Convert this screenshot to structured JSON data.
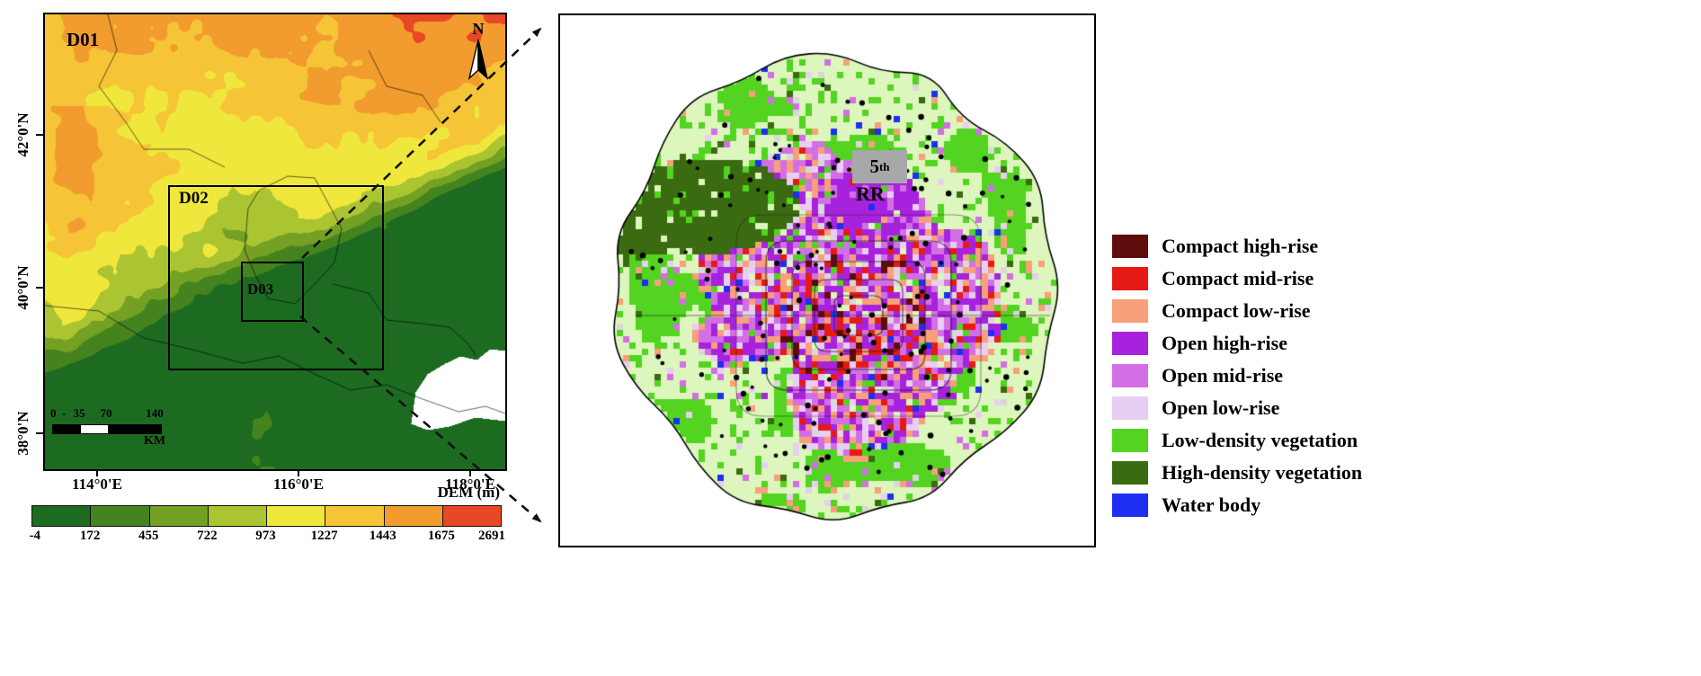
{
  "left_map": {
    "domain_labels": {
      "d01": "D01",
      "d02": "D02",
      "d03": "D03"
    },
    "north_label": "N",
    "y_ticks": [
      "42°0'N",
      "40°0'N",
      "38°0'N"
    ],
    "x_ticks": [
      "114°0'E",
      "116°0'E",
      "118°0'E"
    ],
    "scalebar": {
      "tick0": "0",
      "dash": "-",
      "tick1": "35",
      "tick2": "70",
      "tick3": "140",
      "unit": "KM"
    },
    "colorbar": {
      "title": "DEM (m)",
      "tick_labels": [
        "-4",
        "172",
        "455",
        "722",
        "973",
        "1227",
        "1443",
        "1675",
        "2691"
      ],
      "segment_colors": [
        "#1c6b21",
        "#44831e",
        "#74a023",
        "#abc432",
        "#f0e73c",
        "#f6c437",
        "#f29c2f",
        "#e84823"
      ]
    },
    "map_colors": {
      "sea": "#ffffff",
      "boundary_line": "#1a1a1a"
    }
  },
  "right_map": {
    "annotation": {
      "ring_number": "5",
      "ring_sup": "th",
      "ring_label": "RR"
    },
    "legend": [
      {
        "label": "Compact high-rise",
        "color": "#5f0c0c"
      },
      {
        "label": "Compact mid-rise",
        "color": "#e61a15"
      },
      {
        "label": "Compact low-rise",
        "color": "#f7a07a"
      },
      {
        "label": "Open high-rise",
        "color": "#a722dd"
      },
      {
        "label": "Open mid-rise",
        "color": "#d36fe6"
      },
      {
        "label": "Open low-rise",
        "color": "#e9cef3"
      },
      {
        "label": "Low-density vegetation",
        "color": "#52d420"
      },
      {
        "label": "High-density vegetation",
        "color": "#3a6b10"
      },
      {
        "label": "Water body",
        "color": "#1e2ef2"
      }
    ],
    "map_colors": {
      "inside_base": "#ddf6bd",
      "sparse_gray": "#d8d8d8",
      "outline": "#000000",
      "ring_label_bg": "#a8a8a8"
    }
  }
}
